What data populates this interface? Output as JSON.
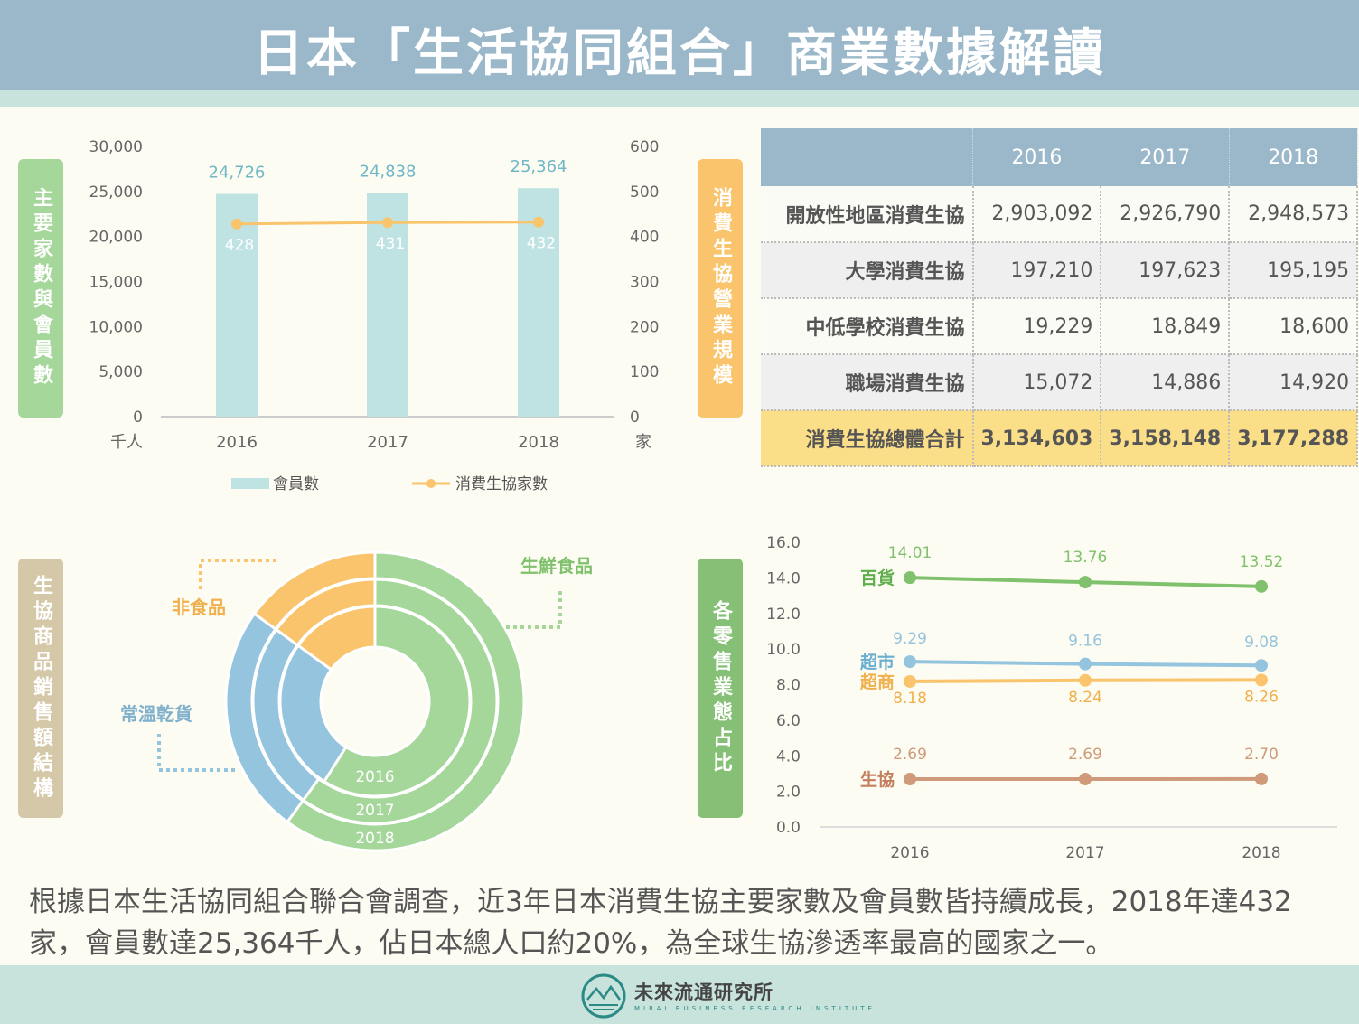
{
  "title": "日本「生活協同組合」商業數據解讀",
  "section_labels": {
    "members": "主要家數與會員數",
    "scale": "消費生協營業規模",
    "products": "生協商品銷售額結構",
    "retail": "各零售業態占比"
  },
  "colors": {
    "header": "#9ab8c9",
    "teal_bar": "#bfe2e3",
    "orange": "#f9c46b",
    "green": "#7fc16c",
    "light_green": "#a5d69a",
    "blue": "#94c4de",
    "brown": "#cf9a7a",
    "total_row": "#fbdf88"
  },
  "chart_data": [
    {
      "type": "bar+line",
      "categories": [
        "2016",
        "2017",
        "2018"
      ],
      "series": [
        {
          "name": "會員數",
          "type": "bar",
          "axis": "left",
          "values": [
            24726,
            24838,
            25364
          ],
          "labels": [
            "24,726",
            "24,838",
            "25,364"
          ]
        },
        {
          "name": "消費生協家數",
          "type": "line",
          "axis": "right",
          "values": [
            428,
            431,
            432
          ],
          "labels": [
            "428",
            "431",
            "432"
          ]
        }
      ],
      "y_left": {
        "ticks": [
          "30,000",
          "25,000",
          "20,000",
          "15,000",
          "10,000",
          "5,000",
          "0"
        ],
        "unit": "千人",
        "range": [
          0,
          30000
        ]
      },
      "y_right": {
        "ticks": [
          "600",
          "500",
          "400",
          "300",
          "200",
          "100",
          "0"
        ],
        "unit": "家",
        "range": [
          0,
          600
        ]
      },
      "legend": "bottom"
    },
    {
      "type": "table",
      "columns": [
        "2016",
        "2017",
        "2018"
      ],
      "rows": [
        {
          "label": "開放性地區消費生協",
          "values": [
            "2,903,092",
            "2,926,790",
            "2,948,573"
          ]
        },
        {
          "label": "大學消費生協",
          "values": [
            "197,210",
            "197,623",
            "195,195"
          ]
        },
        {
          "label": "中低學校消費生協",
          "values": [
            "19,229",
            "18,849",
            "18,600"
          ]
        },
        {
          "label": "職場消費生協",
          "values": [
            "15,072",
            "14,886",
            "14,920"
          ]
        },
        {
          "label": "消費生協總體合計",
          "values": [
            "3,134,603",
            "3,158,148",
            "3,177,288"
          ]
        }
      ]
    },
    {
      "type": "pie",
      "variant": "multi-ring donut",
      "rings": [
        "2016",
        "2017",
        "2018"
      ],
      "categories": [
        "生鮮食品",
        "常溫乾貨",
        "非食品"
      ],
      "series": [
        {
          "name": "2016",
          "values": [
            0.59,
            0.26,
            0.15
          ]
        },
        {
          "name": "2017",
          "values": [
            0.6,
            0.25,
            0.15
          ]
        },
        {
          "name": "2018",
          "values": [
            0.6,
            0.25,
            0.15
          ]
        }
      ]
    },
    {
      "type": "line",
      "x": [
        "2016",
        "2017",
        "2018"
      ],
      "y_ticks": [
        "16.0",
        "14.0",
        "12.0",
        "10.0",
        "8.0",
        "6.0",
        "4.0",
        "2.0",
        "0.0"
      ],
      "ylim": [
        0,
        16
      ],
      "series": [
        {
          "name": "百貨",
          "values": [
            14.01,
            13.76,
            13.52
          ],
          "labels": [
            "14.01",
            "13.76",
            "13.52"
          ]
        },
        {
          "name": "超市",
          "values": [
            9.29,
            9.16,
            9.08
          ],
          "labels": [
            "9.29",
            "9.16",
            "9.08"
          ]
        },
        {
          "name": "超商",
          "values": [
            8.18,
            8.24,
            8.26
          ],
          "labels": [
            "8.18",
            "8.24",
            "8.26"
          ]
        },
        {
          "name": "生協",
          "values": [
            2.69,
            2.69,
            2.7
          ],
          "labels": [
            "2.69",
            "2.69",
            "2.70"
          ]
        }
      ]
    }
  ],
  "summary": "根據日本生活協同組合聯合會調查，近3年日本消費生協主要家數及會員數皆持續成長，2018年達432家，會員數達25,364千人，佔日本總人口約20%，為全球生協滲透率最高的國家之一。",
  "brand": {
    "name": "未來流通研究所",
    "sub": "MIRAI BUSINESS RESEARCH INSTITUTE"
  }
}
